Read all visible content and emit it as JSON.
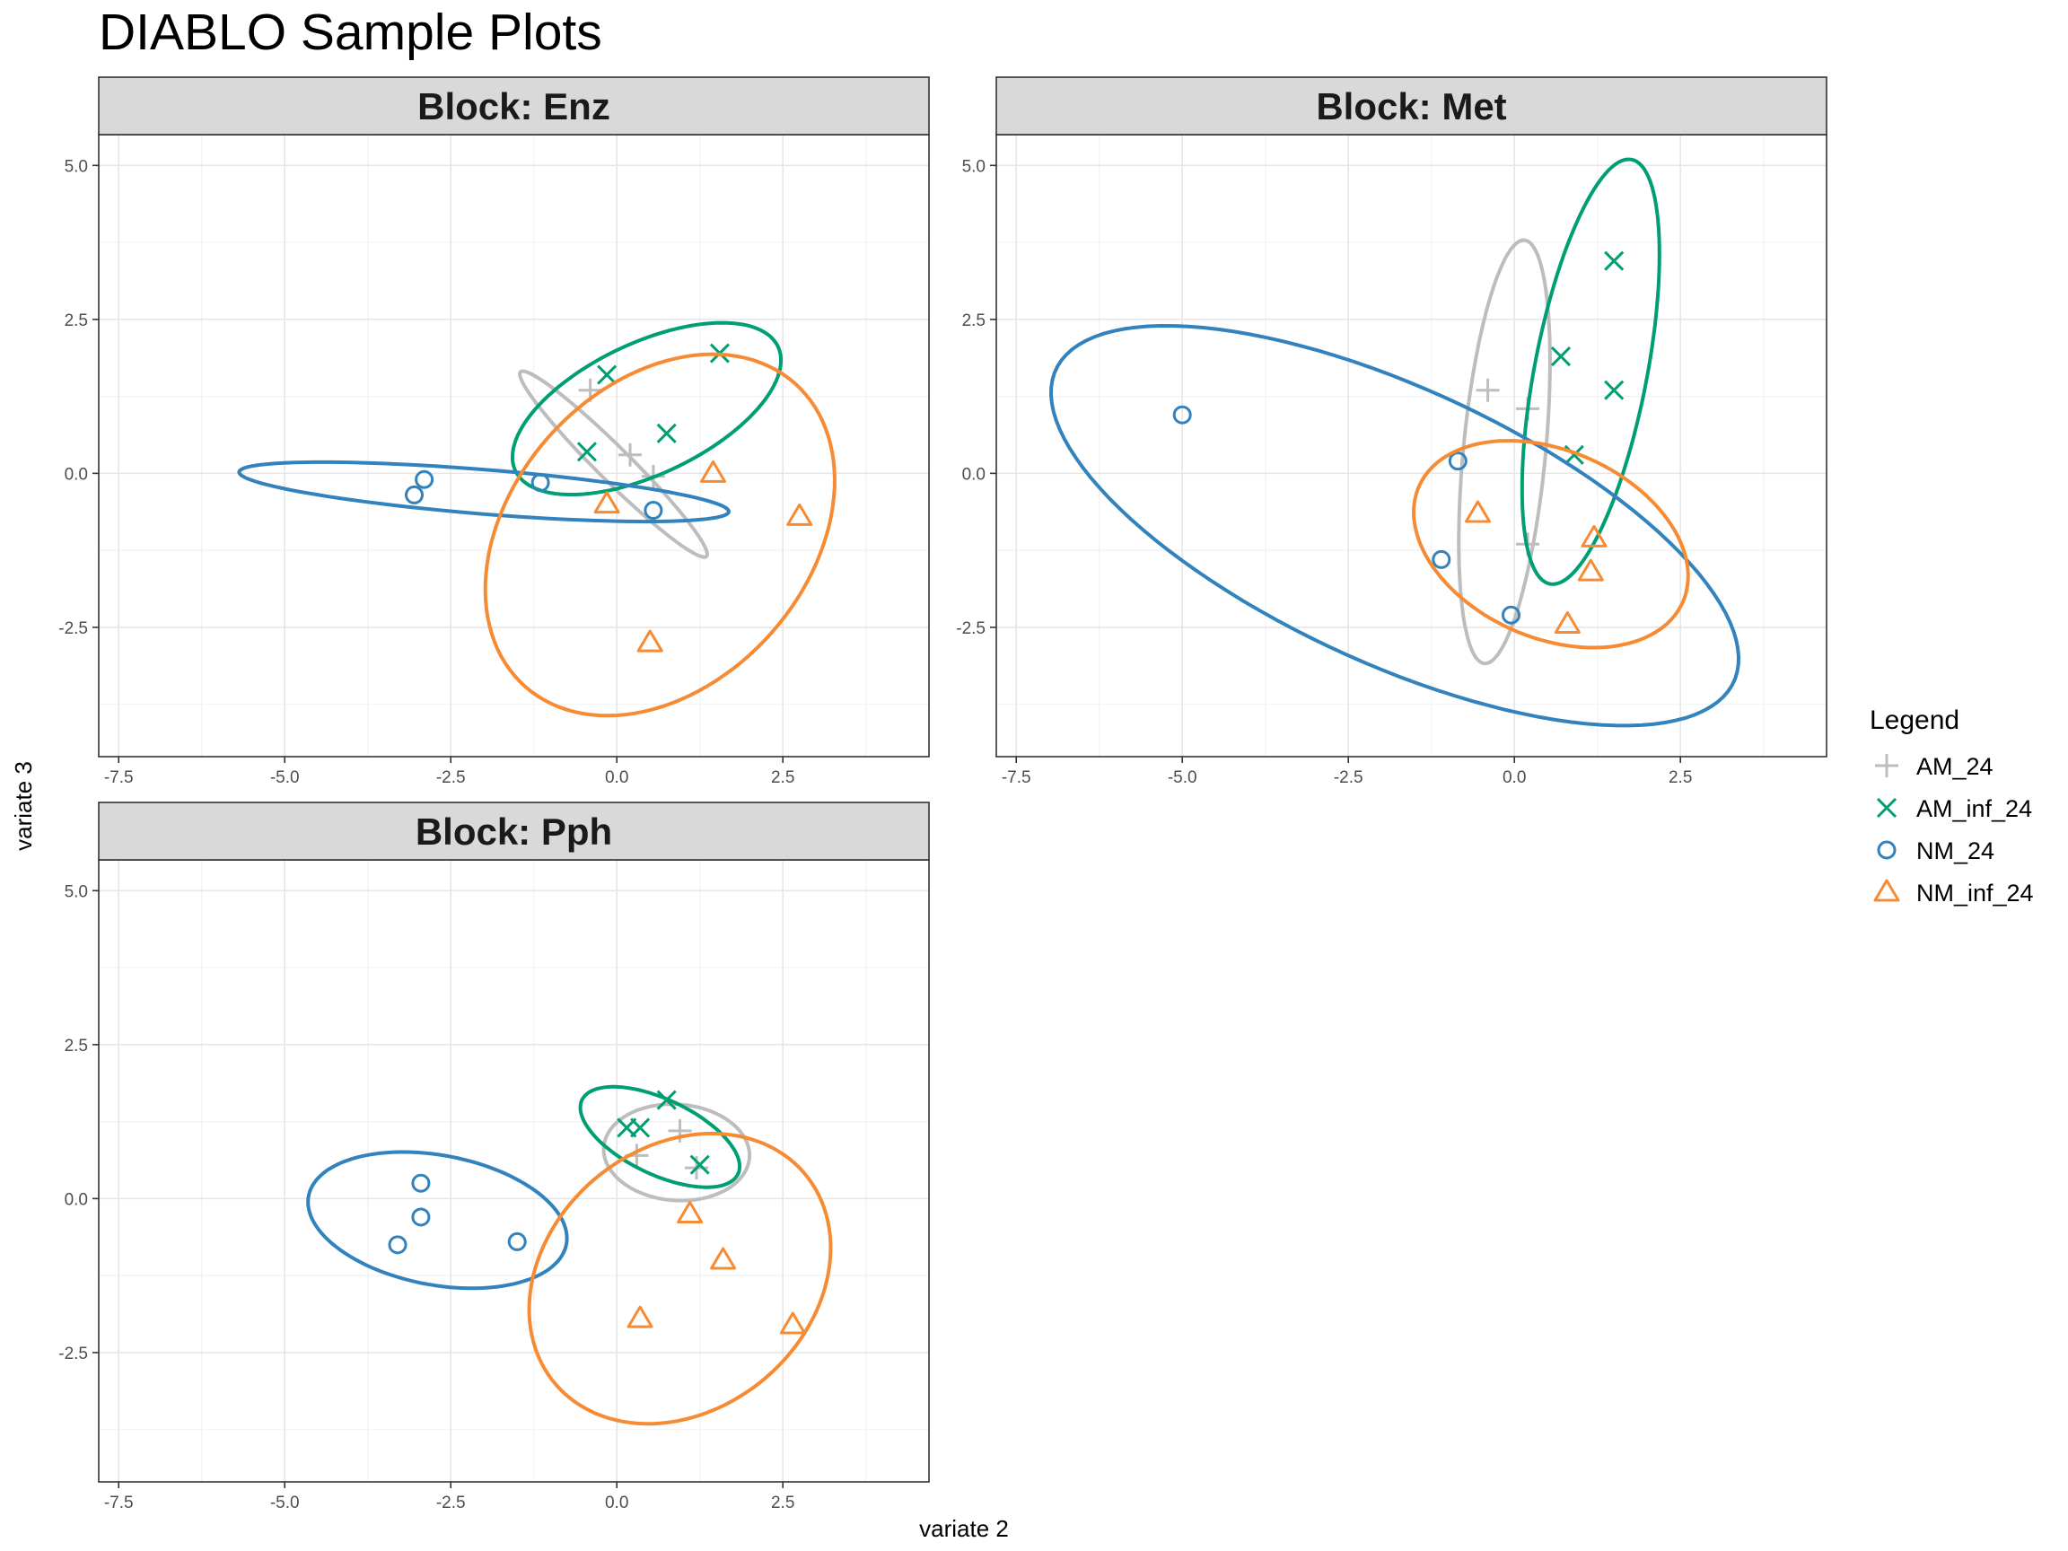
{
  "title": "DIABLO Sample Plots",
  "xlabel": "variate 2",
  "ylabel": "variate 3",
  "legend": {
    "title": "Legend",
    "entries": [
      {
        "label": "AM_24",
        "marker": "plus-icon",
        "color": "#bdbdbd"
      },
      {
        "label": "AM_inf_24",
        "marker": "cross-icon",
        "color": "#009e73"
      },
      {
        "label": "NM_24",
        "marker": "circle-icon",
        "color": "#3182bd"
      },
      {
        "label": "NM_inf_24",
        "marker": "triangle-icon",
        "color": "#f68b33"
      }
    ]
  },
  "chart_data": {
    "type": "scatter",
    "title": "DIABLO Sample Plots",
    "xlabel": "variate 2",
    "ylabel": "variate 3",
    "xlim": [
      -7.8,
      4.7
    ],
    "ylim": [
      -4.6,
      5.5
    ],
    "xticks": [
      -7.5,
      -5.0,
      -2.5,
      0.0,
      2.5
    ],
    "xtick_labels": [
      "-7.5",
      "-5.0",
      "-2.5",
      "0.0",
      "2.5"
    ],
    "yticks": [
      -2.5,
      0.0,
      2.5,
      5.0
    ],
    "ytick_labels": [
      "-2.5",
      "0.0",
      "2.5",
      "5.0"
    ],
    "grid": true,
    "legend_position": "right",
    "panels": [
      {
        "title": "Block: Enz",
        "series": [
          {
            "name": "AM_24",
            "points": [
              [
                -0.4,
                1.35
              ],
              [
                0.2,
                0.3
              ],
              [
                0.55,
                -0.05
              ]
            ],
            "ellipse": {
              "center": [
                -0.05,
                0.15
              ],
              "semi_axes": [
                2.05,
                0.26
              ],
              "angle_deg": -47
            }
          },
          {
            "name": "AM_inf_24",
            "points": [
              [
                -0.15,
                1.6
              ],
              [
                1.55,
                1.95
              ],
              [
                0.75,
                0.65
              ],
              [
                -0.45,
                0.35
              ]
            ],
            "ellipse": {
              "center": [
                0.45,
                1.05
              ],
              "semi_axes": [
                2.22,
                1.05
              ],
              "angle_deg": 28
            }
          },
          {
            "name": "NM_24",
            "points": [
              [
                -2.9,
                -0.1
              ],
              [
                -3.05,
                -0.35
              ],
              [
                -1.15,
                -0.15
              ],
              [
                0.55,
                -0.6
              ]
            ],
            "ellipse": {
              "center": [
                -2.0,
                -0.3
              ],
              "semi_axes": [
                3.7,
                0.36
              ],
              "angle_deg": -5
            }
          },
          {
            "name": "NM_inf_24",
            "points": [
              [
                -0.15,
                -0.5
              ],
              [
                1.45,
                0.0
              ],
              [
                2.75,
                -0.7
              ],
              [
                0.5,
                -2.75
              ]
            ],
            "ellipse": {
              "center": [
                0.65,
                -1.0
              ],
              "semi_axes": [
                3.2,
                2.3
              ],
              "angle_deg": 55
            }
          }
        ]
      },
      {
        "title": "Block: Met",
        "series": [
          {
            "name": "AM_24",
            "points": [
              [
                -0.4,
                1.35
              ],
              [
                0.2,
                1.05
              ],
              [
                0.2,
                -1.15
              ]
            ],
            "ellipse": {
              "center": [
                -0.15,
                0.35
              ],
              "semi_axes": [
                3.45,
                0.62
              ],
              "angle_deg": 85
            }
          },
          {
            "name": "AM_inf_24",
            "points": [
              [
                0.7,
                1.9
              ],
              [
                1.5,
                3.45
              ],
              [
                1.5,
                1.35
              ],
              [
                0.9,
                0.3
              ]
            ],
            "ellipse": {
              "center": [
                1.15,
                1.65
              ],
              "semi_axes": [
                3.5,
                0.85
              ],
              "angle_deg": 80
            }
          },
          {
            "name": "NM_24",
            "points": [
              [
                -5.0,
                0.95
              ],
              [
                -0.85,
                0.2
              ],
              [
                -1.1,
                -1.4
              ],
              [
                -0.05,
                -2.3
              ]
            ],
            "ellipse": {
              "center": [
                -1.8,
                -0.85
              ],
              "semi_axes": [
                5.7,
                2.2
              ],
              "angle_deg": -27
            }
          },
          {
            "name": "NM_inf_24",
            "points": [
              [
                -0.55,
                -0.65
              ],
              [
                1.2,
                -1.05
              ],
              [
                1.15,
                -1.6
              ],
              [
                0.8,
                -2.45
              ]
            ],
            "ellipse": {
              "center": [
                0.55,
                -1.15
              ],
              "semi_axes": [
                2.2,
                1.5
              ],
              "angle_deg": -28
            }
          }
        ]
      },
      {
        "title": "Block: Pph",
        "series": [
          {
            "name": "AM_24",
            "points": [
              [
                0.3,
                0.7
              ],
              [
                0.95,
                1.1
              ],
              [
                1.2,
                0.5
              ]
            ],
            "ellipse": {
              "center": [
                0.9,
                0.75
              ],
              "semi_axes": [
                1.1,
                0.78
              ],
              "angle_deg": -5
            }
          },
          {
            "name": "AM_inf_24",
            "points": [
              [
                0.15,
                1.15
              ],
              [
                0.35,
                1.15
              ],
              [
                0.75,
                1.6
              ],
              [
                1.25,
                0.55
              ]
            ],
            "ellipse": {
              "center": [
                0.65,
                1.0
              ],
              "semi_axes": [
                1.32,
                0.6
              ],
              "angle_deg": -28
            }
          },
          {
            "name": "NM_24",
            "points": [
              [
                -2.95,
                0.25
              ],
              [
                -2.95,
                -0.3
              ],
              [
                -3.3,
                -0.75
              ],
              [
                -1.5,
                -0.7
              ]
            ],
            "ellipse": {
              "center": [
                -2.7,
                -0.35
              ],
              "semi_axes": [
                1.98,
                1.05
              ],
              "angle_deg": -12
            }
          },
          {
            "name": "NM_inf_24",
            "points": [
              [
                1.1,
                -0.25
              ],
              [
                1.6,
                -1.0
              ],
              [
                0.35,
                -1.95
              ],
              [
                2.65,
                -2.05
              ]
            ],
            "ellipse": {
              "center": [
                0.95,
                -1.3
              ],
              "semi_axes": [
                2.55,
                2.05
              ],
              "angle_deg": 50
            }
          }
        ]
      }
    ]
  }
}
